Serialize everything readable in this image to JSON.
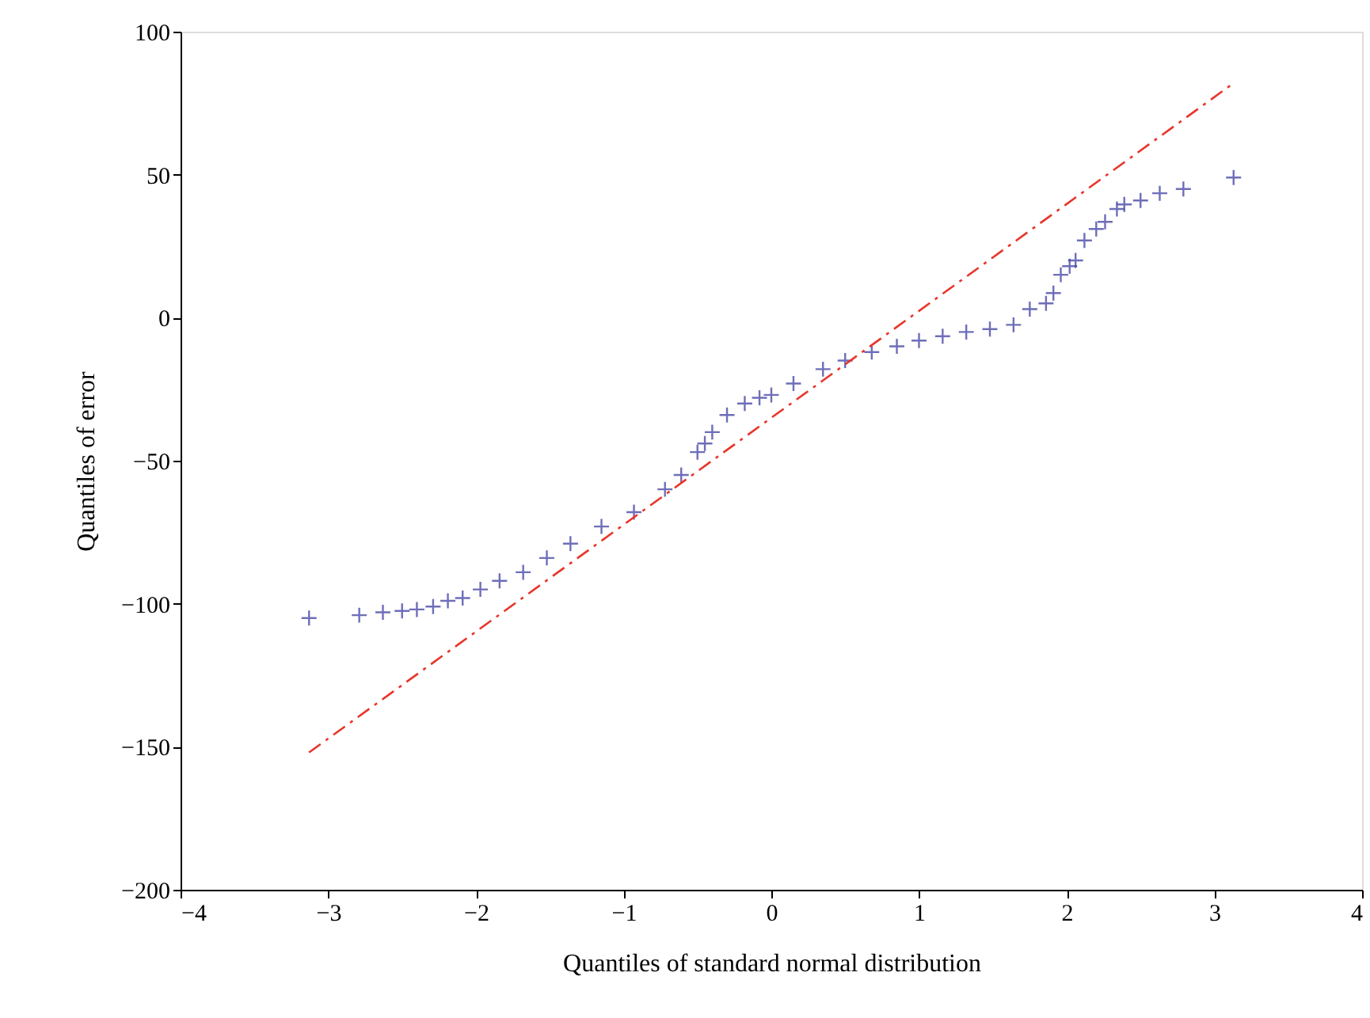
{
  "chart_data": {
    "type": "scatter",
    "xlabel": "Quantiles of standard normal distribution",
    "ylabel": "Quantiles of error",
    "xlim": [
      -4,
      4
    ],
    "xticks": [
      -4,
      -3,
      -2,
      -1,
      0,
      1,
      2,
      3,
      4
    ],
    "ylim": [
      -200,
      100
    ],
    "yticks": [
      -200,
      -150,
      -100,
      -50,
      0,
      50,
      100
    ],
    "grid": false,
    "series": [
      {
        "marker": "cross",
        "color": "#4a4aa8",
        "x": [
          -3.13,
          -2.79,
          -2.63,
          -2.5,
          -2.4,
          -2.29,
          -2.19,
          -2.09,
          -1.97,
          -1.84,
          -1.68,
          -1.52,
          -1.36,
          -1.15,
          -0.93,
          -0.72,
          -0.61,
          -0.5,
          -0.45,
          -0.4,
          -0.3,
          -0.18,
          -0.08,
          0,
          0.15,
          0.35,
          0.5,
          0.68,
          0.85,
          1.0,
          1.16,
          1.32,
          1.48,
          1.64,
          1.75,
          1.86,
          1.91,
          1.96,
          2.02,
          2.06,
          2.12,
          2.2,
          2.26,
          2.34,
          2.39,
          2.5,
          2.63,
          2.79,
          3.13
        ],
        "values": [
          -105,
          -104,
          -103,
          -102.5,
          -102,
          -101,
          -99,
          -98,
          -95,
          -92,
          -89,
          -84,
          -79,
          -73,
          -68,
          -60,
          -55,
          -47,
          -44,
          -40,
          -34,
          -30,
          -28,
          -27,
          -23,
          -18,
          -15,
          -12,
          -10,
          -8,
          -6.5,
          -5,
          -4,
          -2.5,
          3,
          5,
          8.6,
          15,
          18,
          20,
          27,
          31,
          33.5,
          38,
          39.6,
          41,
          43.5,
          45,
          49
        ]
      },
      {
        "type": "line",
        "line_style": "dashed",
        "color": "#e8342a",
        "x": [
          -3.13,
          3.13
        ],
        "values": [
          -152,
          82
        ]
      }
    ]
  }
}
